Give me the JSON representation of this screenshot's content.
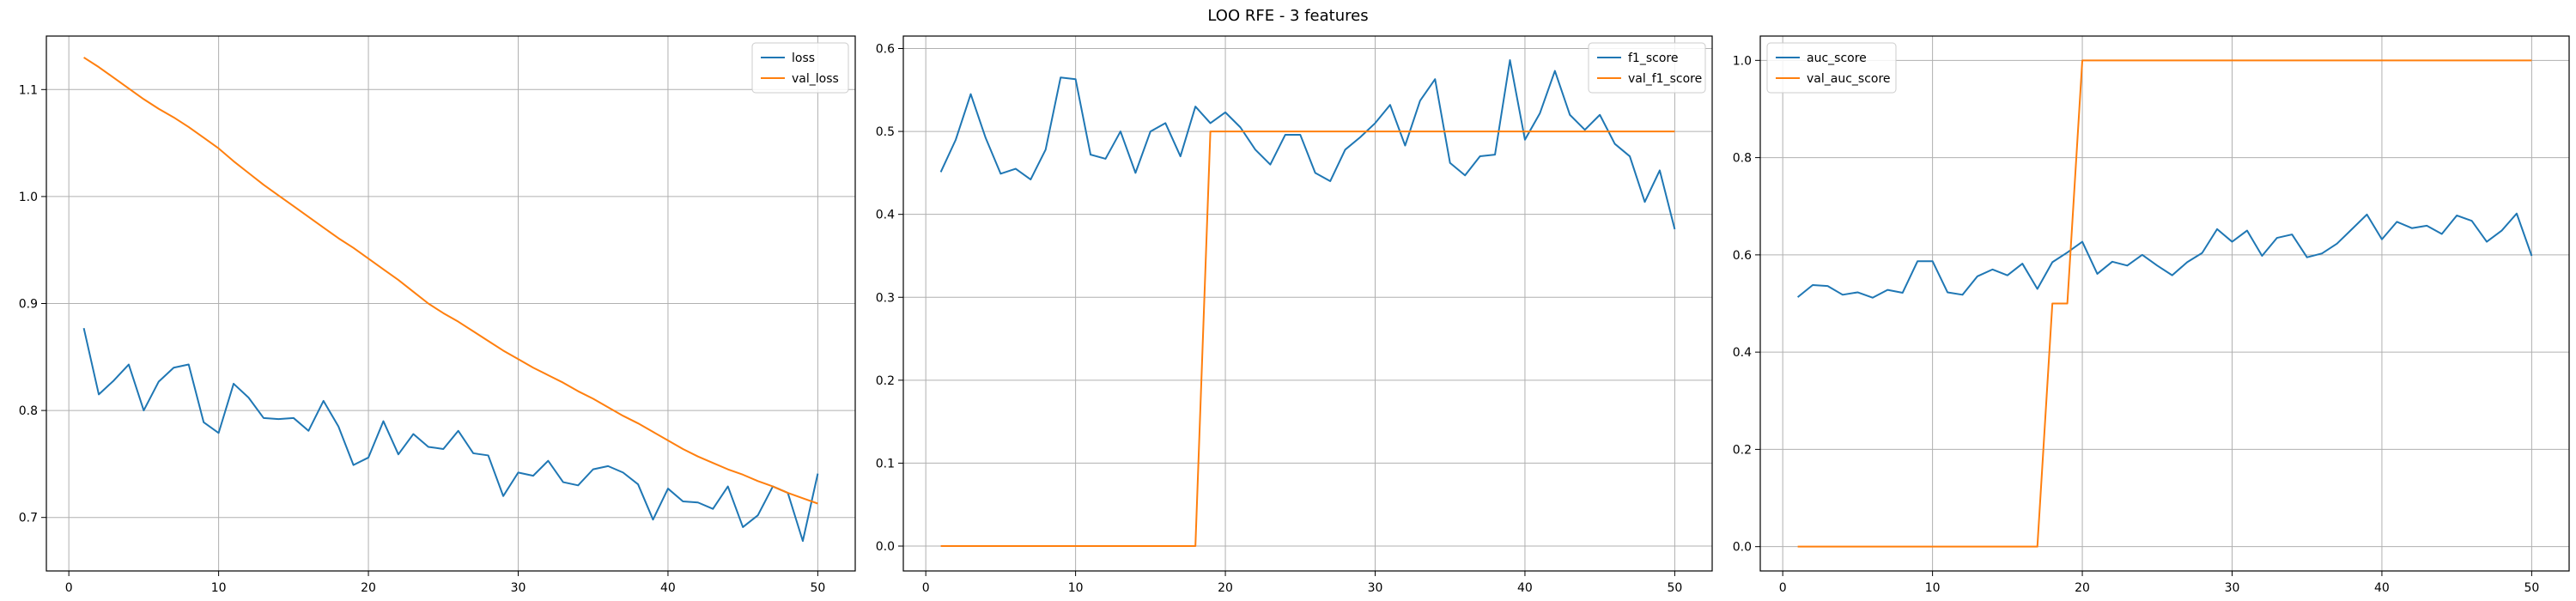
{
  "figure": {
    "suptitle": "LOO RFE - 3 features"
  },
  "colors": {
    "blue": "#1f77b4",
    "orange": "#ff7f0e",
    "grid": "#b0b0b0",
    "axis": "#000000"
  },
  "chart_data": [
    {
      "type": "line",
      "title": "",
      "xlabel": "",
      "ylabel": "",
      "grid": true,
      "legend_position": "top-right",
      "xlim": [
        -1.5,
        52.5
      ],
      "ylim": [
        0.65,
        1.15
      ],
      "xticks": [
        0,
        10,
        20,
        30,
        40,
        50
      ],
      "yticks": [
        0.7,
        0.8,
        0.9,
        1.0,
        1.1
      ],
      "ytick_labels": [
        "0.7",
        "0.8",
        "0.9",
        "1.0",
        "1.1"
      ],
      "x": [
        1,
        2,
        3,
        4,
        5,
        6,
        7,
        8,
        9,
        10,
        11,
        12,
        13,
        14,
        15,
        16,
        17,
        18,
        19,
        20,
        21,
        22,
        23,
        24,
        25,
        26,
        27,
        28,
        29,
        30,
        31,
        32,
        33,
        34,
        35,
        36,
        37,
        38,
        39,
        40,
        41,
        42,
        43,
        44,
        45,
        46,
        47,
        48,
        49,
        50
      ],
      "series": [
        {
          "name": "loss",
          "color": "#1f77b4",
          "values": [
            0.877,
            0.815,
            0.828,
            0.843,
            0.8,
            0.827,
            0.84,
            0.843,
            0.789,
            0.779,
            0.825,
            0.812,
            0.793,
            0.792,
            0.793,
            0.781,
            0.809,
            0.785,
            0.749,
            0.756,
            0.79,
            0.759,
            0.778,
            0.766,
            0.764,
            0.781,
            0.76,
            0.758,
            0.72,
            0.742,
            0.739,
            0.753,
            0.733,
            0.73,
            0.745,
            0.748,
            0.742,
            0.731,
            0.698,
            0.727,
            0.715,
            0.714,
            0.708,
            0.729,
            0.691,
            0.702,
            0.729,
            0.723,
            0.678,
            0.741
          ]
        },
        {
          "name": "val_loss",
          "color": "#ff7f0e",
          "values": [
            1.13,
            1.121,
            1.111,
            1.101,
            1.091,
            1.082,
            1.074,
            1.065,
            1.055,
            1.045,
            1.033,
            1.022,
            1.011,
            1.001,
            0.991,
            0.981,
            0.971,
            0.961,
            0.952,
            0.942,
            0.932,
            0.922,
            0.911,
            0.9,
            0.891,
            0.883,
            0.874,
            0.865,
            0.856,
            0.848,
            0.84,
            0.833,
            0.826,
            0.818,
            0.811,
            0.803,
            0.795,
            0.788,
            0.78,
            0.772,
            0.764,
            0.757,
            0.751,
            0.745,
            0.74,
            0.734,
            0.729,
            0.723,
            0.718,
            0.713
          ]
        }
      ]
    },
    {
      "type": "line",
      "title": "",
      "xlabel": "",
      "ylabel": "",
      "grid": true,
      "legend_position": "top-right",
      "xlim": [
        -1.5,
        52.5
      ],
      "ylim": [
        -0.03,
        0.615
      ],
      "xticks": [
        0,
        10,
        20,
        30,
        40,
        50
      ],
      "yticks": [
        0.0,
        0.1,
        0.2,
        0.3,
        0.4,
        0.5,
        0.6
      ],
      "ytick_labels": [
        "0.0",
        "0.1",
        "0.2",
        "0.3",
        "0.4",
        "0.5",
        "0.6"
      ],
      "x": [
        1,
        2,
        3,
        4,
        5,
        6,
        7,
        8,
        9,
        10,
        11,
        12,
        13,
        14,
        15,
        16,
        17,
        18,
        19,
        20,
        21,
        22,
        23,
        24,
        25,
        26,
        27,
        28,
        29,
        30,
        31,
        32,
        33,
        34,
        35,
        36,
        37,
        38,
        39,
        40,
        41,
        42,
        43,
        44,
        45,
        46,
        47,
        48,
        49,
        50
      ],
      "series": [
        {
          "name": "f1_score",
          "color": "#1f77b4",
          "values": [
            0.451,
            0.49,
            0.545,
            0.492,
            0.449,
            0.455,
            0.442,
            0.478,
            0.565,
            0.563,
            0.472,
            0.467,
            0.5,
            0.45,
            0.5,
            0.51,
            0.47,
            0.53,
            0.51,
            0.523,
            0.505,
            0.478,
            0.46,
            0.496,
            0.496,
            0.45,
            0.44,
            0.478,
            0.493,
            0.51,
            0.532,
            0.483,
            0.537,
            0.563,
            0.462,
            0.447,
            0.47,
            0.472,
            0.586,
            0.49,
            0.522,
            0.573,
            0.52,
            0.502,
            0.52,
            0.485,
            0.47,
            0.415,
            0.453,
            0.382
          ]
        },
        {
          "name": "val_f1_score",
          "color": "#ff7f0e",
          "values": [
            0,
            0,
            0,
            0,
            0,
            0,
            0,
            0,
            0,
            0,
            0,
            0,
            0,
            0,
            0,
            0,
            0,
            0,
            0.5,
            0.5,
            0.5,
            0.5,
            0.5,
            0.5,
            0.5,
            0.5,
            0.5,
            0.5,
            0.5,
            0.5,
            0.5,
            0.5,
            0.5,
            0.5,
            0.5,
            0.5,
            0.5,
            0.5,
            0.5,
            0.5,
            0.5,
            0.5,
            0.5,
            0.5,
            0.5,
            0.5,
            0.5,
            0.5,
            0.5,
            0.5
          ]
        }
      ]
    },
    {
      "type": "line",
      "title": "",
      "xlabel": "",
      "ylabel": "",
      "grid": true,
      "legend_position": "top-left",
      "xlim": [
        -1.5,
        52.5
      ],
      "ylim": [
        -0.05,
        1.05
      ],
      "xticks": [
        0,
        10,
        20,
        30,
        40,
        50
      ],
      "yticks": [
        0.0,
        0.2,
        0.4,
        0.6,
        0.8,
        1.0
      ],
      "ytick_labels": [
        "0.0",
        "0.2",
        "0.4",
        "0.6",
        "0.8",
        "1.0"
      ],
      "x": [
        1,
        2,
        3,
        4,
        5,
        6,
        7,
        8,
        9,
        10,
        11,
        12,
        13,
        14,
        15,
        16,
        17,
        18,
        19,
        20,
        21,
        22,
        23,
        24,
        25,
        26,
        27,
        28,
        29,
        30,
        31,
        32,
        33,
        34,
        35,
        36,
        37,
        38,
        39,
        40,
        41,
        42,
        43,
        44,
        45,
        46,
        47,
        48,
        49,
        50
      ],
      "series": [
        {
          "name": "auc_score",
          "color": "#1f77b4",
          "values": [
            0.513,
            0.538,
            0.536,
            0.518,
            0.523,
            0.512,
            0.528,
            0.522,
            0.587,
            0.587,
            0.523,
            0.518,
            0.556,
            0.57,
            0.558,
            0.582,
            0.53,
            0.585,
            0.605,
            0.627,
            0.561,
            0.586,
            0.578,
            0.6,
            0.578,
            0.558,
            0.585,
            0.604,
            0.653,
            0.627,
            0.65,
            0.598,
            0.635,
            0.642,
            0.595,
            0.603,
            0.623,
            0.653,
            0.683,
            0.632,
            0.668,
            0.655,
            0.66,
            0.643,
            0.681,
            0.67,
            0.627,
            0.65,
            0.685,
            0.598
          ]
        },
        {
          "name": "val_auc_score",
          "color": "#ff7f0e",
          "values": [
            0,
            0,
            0,
            0,
            0,
            0,
            0,
            0,
            0,
            0,
            0,
            0,
            0,
            0,
            0,
            0,
            0,
            0.5,
            0.5,
            1,
            1,
            1,
            1,
            1,
            1,
            1,
            1,
            1,
            1,
            1,
            1,
            1,
            1,
            1,
            1,
            1,
            1,
            1,
            1,
            1,
            1,
            1,
            1,
            1,
            1,
            1,
            1,
            1,
            1,
            1
          ]
        }
      ]
    }
  ]
}
